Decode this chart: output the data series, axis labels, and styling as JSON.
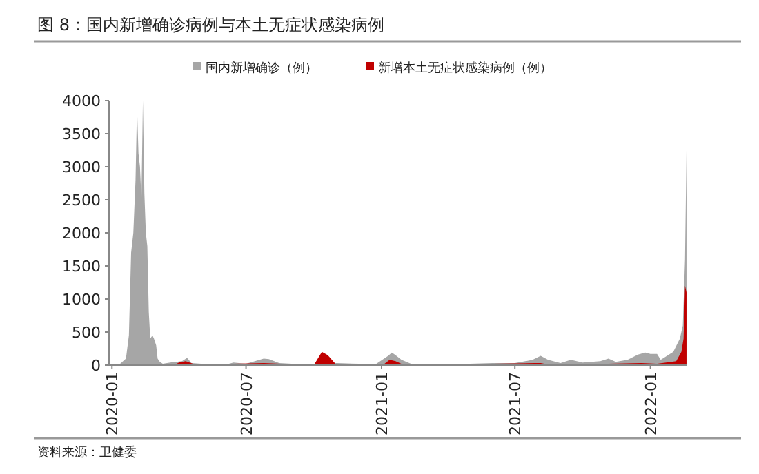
{
  "chart_data": {
    "type": "area",
    "title": "图 8：国内新增确诊病例与本土无症状感染病例",
    "annotations": [
      "资料来源：卫健委"
    ],
    "legend": "top",
    "grid": false,
    "xlim": [
      "2019-12-28",
      "2022-02-20"
    ],
    "xticks": [
      "2020-01",
      "2020-07",
      "2021-01",
      "2021-07",
      "2022-01"
    ],
    "ylim": [
      0,
      4000
    ],
    "yticks": [
      0,
      500,
      1000,
      1500,
      2000,
      2500,
      3000,
      3500,
      4000
    ],
    "series": [
      {
        "name": "国内新增确诊（例）",
        "color": "#a6a6a6",
        "x": [
          "2020-01-10",
          "2020-01-20",
          "2020-01-24",
          "2020-01-27",
          "2020-01-30",
          "2020-02-02",
          "2020-02-04",
          "2020-02-06",
          "2020-02-08",
          "2020-02-10",
          "2020-02-12",
          "2020-02-14",
          "2020-02-16",
          "2020-02-18",
          "2020-02-20",
          "2020-02-22",
          "2020-02-25",
          "2020-02-27",
          "2020-03-01",
          "2020-03-03",
          "2020-03-06",
          "2020-03-10",
          "2020-03-20",
          "2020-03-28",
          "2020-04-05",
          "2020-04-12",
          "2020-04-18",
          "2020-05-01",
          "2020-06-01",
          "2020-06-14",
          "2020-07-01",
          "2020-07-25",
          "2020-08-01",
          "2020-08-15",
          "2020-09-01",
          "2020-10-01",
          "2020-10-15",
          "2020-11-01",
          "2020-12-01",
          "2020-12-25",
          "2021-01-10",
          "2021-01-15",
          "2021-01-20",
          "2021-01-28",
          "2021-02-10",
          "2021-03-01",
          "2021-04-01",
          "2021-05-01",
          "2021-06-01",
          "2021-07-01",
          "2021-07-25",
          "2021-08-05",
          "2021-08-15",
          "2021-09-01",
          "2021-09-15",
          "2021-10-01",
          "2021-10-25",
          "2021-11-05",
          "2021-11-15",
          "2021-12-01",
          "2021-12-15",
          "2021-12-25",
          "2022-01-01",
          "2022-01-10",
          "2022-01-15",
          "2022-01-25",
          "2022-02-01",
          "2022-02-10",
          "2022-02-14",
          "2022-02-17",
          "2022-02-19"
        ],
        "values": [
          0,
          100,
          450,
          1700,
          2000,
          2800,
          3900,
          3200,
          3000,
          2500,
          4000,
          2600,
          2000,
          1800,
          800,
          400,
          450,
          400,
          300,
          100,
          50,
          20,
          40,
          50,
          60,
          110,
          30,
          20,
          0,
          40,
          20,
          100,
          90,
          30,
          20,
          20,
          20,
          30,
          20,
          20,
          140,
          190,
          150,
          80,
          20,
          20,
          20,
          20,
          30,
          30,
          80,
          140,
          80,
          30,
          80,
          40,
          60,
          100,
          50,
          80,
          160,
          190,
          170,
          170,
          80,
          150,
          200,
          400,
          600,
          1600,
          3250
        ]
      },
      {
        "name": "新增本土无症状感染病例（例）",
        "color": "#c00000",
        "x": [
          "2020-03-25",
          "2020-04-01",
          "2020-04-10",
          "2020-04-20",
          "2020-05-15",
          "2020-06-15",
          "2020-07-25",
          "2020-10-01",
          "2020-10-12",
          "2020-10-20",
          "2020-11-01",
          "2021-01-05",
          "2021-01-12",
          "2021-01-20",
          "2021-02-01",
          "2021-07-28",
          "2021-08-05",
          "2021-08-20",
          "2021-11-05",
          "2021-12-20",
          "2022-01-10",
          "2022-02-05",
          "2022-02-12",
          "2022-02-15",
          "2022-02-17",
          "2022-02-19"
        ],
        "values": [
          0,
          40,
          60,
          20,
          20,
          20,
          30,
          0,
          200,
          150,
          0,
          20,
          80,
          60,
          0,
          30,
          30,
          0,
          20,
          30,
          20,
          60,
          200,
          400,
          1200,
          1100
        ]
      }
    ]
  }
}
